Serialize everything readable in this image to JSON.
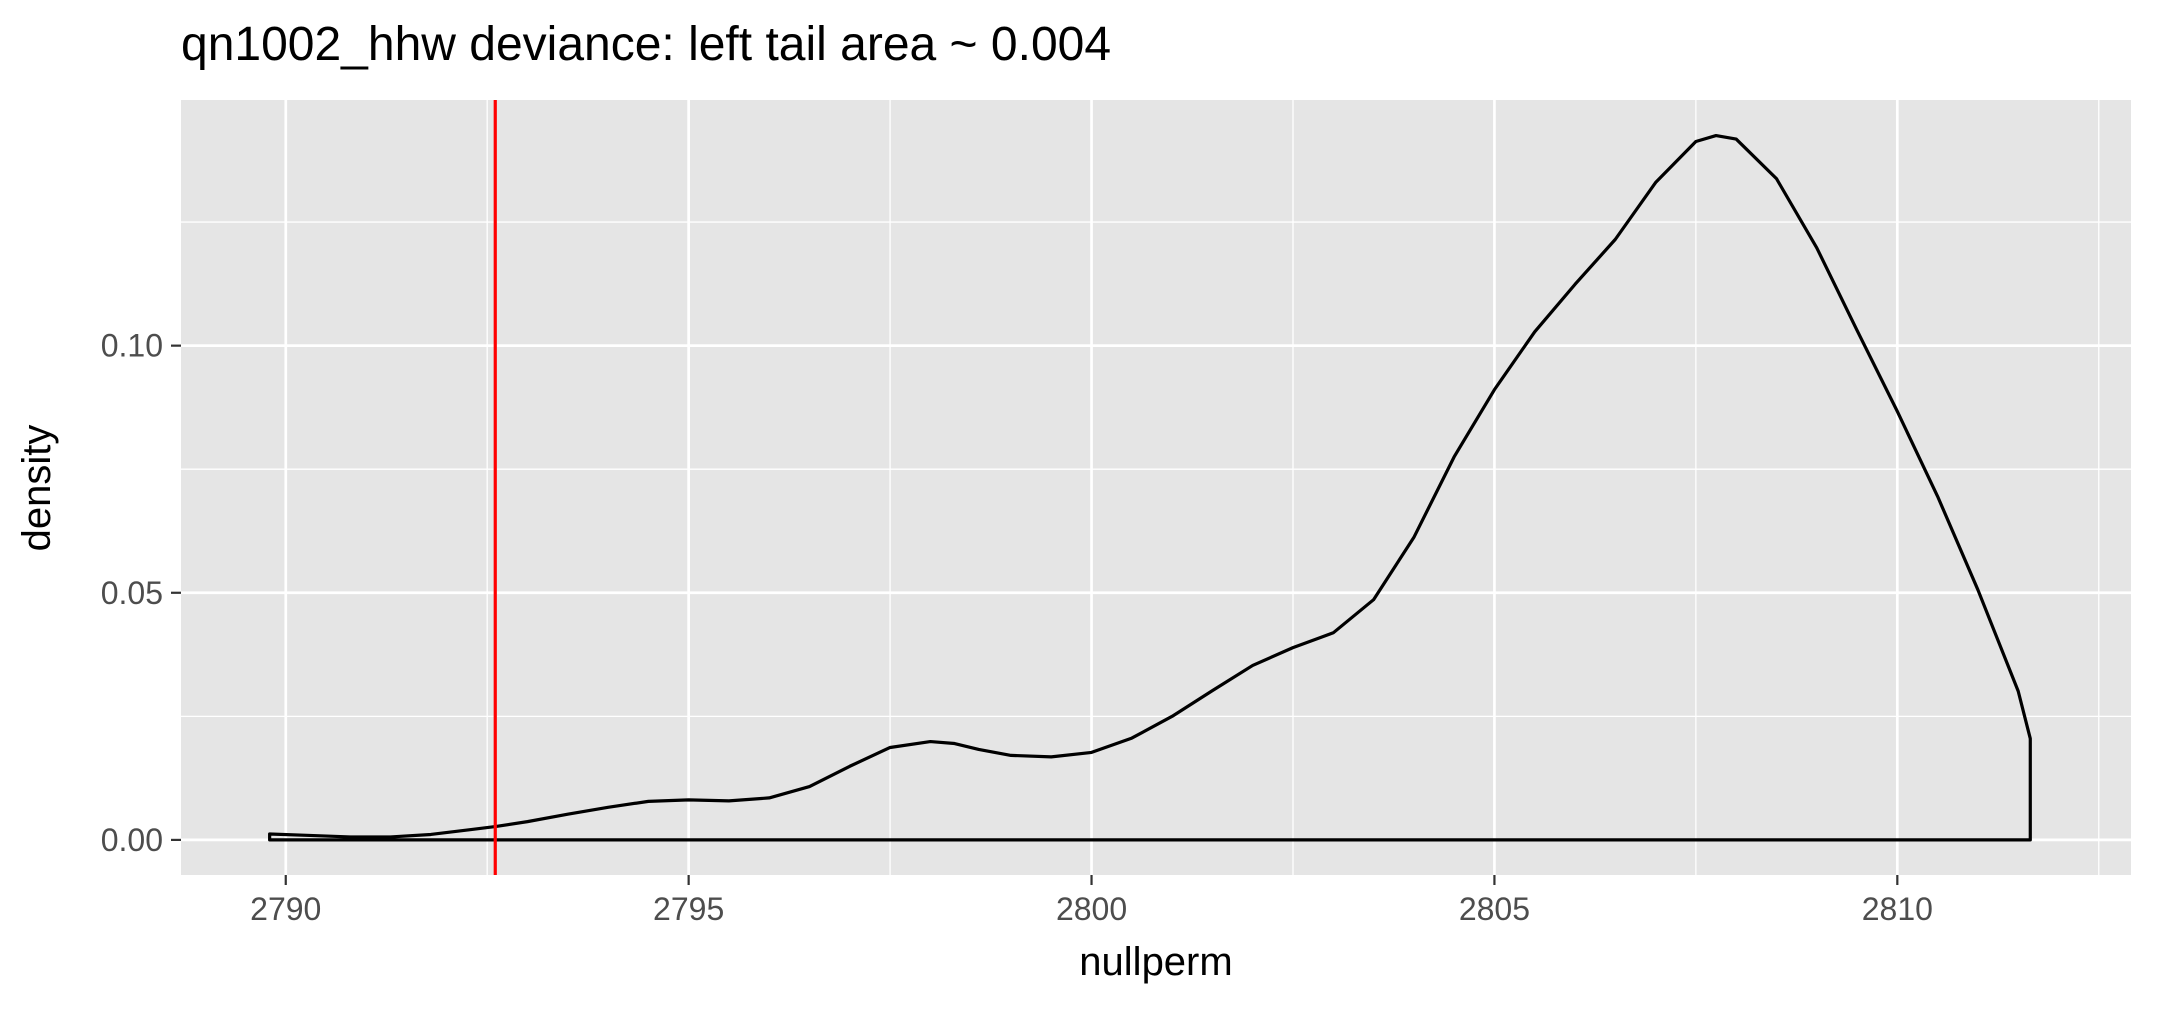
{
  "chart_data": {
    "type": "area",
    "title": "qn1002_hhw deviance: left tail area ~ 0.004",
    "xlabel": "nullperm",
    "ylabel": "density",
    "xlim": [
      2788.7,
      2812.9
    ],
    "ylim": [
      -0.0071,
      0.1497
    ],
    "x_ticks": [
      2790,
      2795,
      2800,
      2805,
      2810
    ],
    "x_tick_labels": [
      "2790",
      "2795",
      "2800",
      "2805",
      "2810"
    ],
    "y_ticks": [
      0.0,
      0.05,
      0.1
    ],
    "y_tick_labels": [
      "0.00",
      "0.05",
      "0.10"
    ],
    "x_minor_gridlines": [
      2792.5,
      2797.5,
      2802.5,
      2807.5,
      2812.5
    ],
    "y_minor_gridlines": [
      0.025,
      0.075,
      0.125
    ],
    "grid": true,
    "legend": "none",
    "series": [
      {
        "x": [
          2789.8,
          2790.3,
          2790.8,
          2791.3,
          2791.8,
          2792.3,
          2792.6,
          2793.0,
          2793.5,
          2794.0,
          2794.5,
          2795.0,
          2795.5,
          2796.0,
          2796.5,
          2797.0,
          2797.5,
          2798.0,
          2798.3,
          2798.6,
          2799.0,
          2799.5,
          2800.0,
          2800.5,
          2801.0,
          2801.5,
          2802.0,
          2802.5,
          2803.0,
          2803.5,
          2804.0,
          2804.5,
          2805.0,
          2805.5,
          2806.0,
          2806.5,
          2807.0,
          2807.5,
          2807.75,
          2808.0,
          2808.5,
          2809.0,
          2809.5,
          2810.0,
          2810.5,
          2811.0,
          2811.5,
          2811.65,
          2811.65
        ],
        "y": [
          0.0012,
          0.0009,
          0.0006,
          0.0006,
          0.0011,
          0.0021,
          0.0027,
          0.0037,
          0.0052,
          0.0066,
          0.0078,
          0.0081,
          0.0079,
          0.0085,
          0.0108,
          0.0149,
          0.0187,
          0.0199,
          0.0195,
          0.0183,
          0.0171,
          0.0168,
          0.0177,
          0.0206,
          0.025,
          0.0302,
          0.0353,
          0.0389,
          0.0419,
          0.0486,
          0.0612,
          0.0775,
          0.0911,
          0.1028,
          0.1124,
          0.1215,
          0.133,
          0.1413,
          0.1425,
          0.1418,
          0.1338,
          0.1198,
          0.1031,
          0.0867,
          0.0695,
          0.0506,
          0.0301,
          0.0205,
          0.0
        ]
      }
    ],
    "reference_line": {
      "orientation": "vertical",
      "x": 2792.6,
      "color": "#FF0000"
    },
    "colors": {
      "panel_background": "#E5E5E5",
      "grid_major": "#FFFFFF",
      "density_line": "#000000",
      "tick_label": "#4D4D4D",
      "axis_title": "#000000"
    }
  }
}
